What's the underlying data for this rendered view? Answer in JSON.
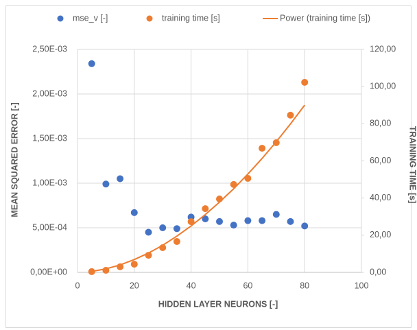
{
  "chart_data": {
    "type": "scatter",
    "x": [
      5,
      10,
      15,
      20,
      25,
      30,
      35,
      40,
      45,
      50,
      55,
      60,
      65,
      70,
      75,
      80
    ],
    "series": [
      {
        "name": "mse_v [-]",
        "color": "#4472c4",
        "mark": "dot",
        "values": [
          0.00234,
          0.00099,
          0.00105,
          0.00067,
          0.00045,
          0.0005,
          0.00049,
          0.00062,
          0.0006,
          0.00057,
          0.00053,
          0.00058,
          0.00058,
          0.00065,
          0.00057,
          0.00052
        ]
      },
      {
        "name": "training time [s]",
        "color": "#ed7d31",
        "mark": "dot",
        "axis": "y2",
        "values": [
          0.4,
          1.1,
          3,
          4.4,
          9.2,
          13.3,
          16.6,
          27.3,
          34.3,
          39.5,
          47.3,
          50.6,
          66.8,
          69.8,
          84.6,
          102.3
        ]
      },
      {
        "name": "Power (training time [s])",
        "color": "#ed7d31",
        "mark": "line",
        "axis": "y2",
        "values": [
          0.5,
          1.9,
          4,
          6.9,
          10.4,
          14.6,
          19.5,
          25,
          31.1,
          37.8,
          45,
          52.9,
          61.3,
          70.3,
          79.9,
          90
        ]
      }
    ],
    "xlabel": "HIDDEN LAYER NEURONS [-]",
    "ylabel": "MEAN SQUARED ERROR [-]",
    "y2label": "TRAINING TIME [s]",
    "xlim": [
      0,
      100
    ],
    "xticks": [
      0,
      20,
      40,
      60,
      80,
      100
    ],
    "ylim": [
      0,
      0.0025
    ],
    "yticks": [
      {
        "value": 0,
        "label": "0,00E+00"
      },
      {
        "value": 0.0005,
        "label": "5,00E-04"
      },
      {
        "value": 0.001,
        "label": "1,00E-03"
      },
      {
        "value": 0.0015,
        "label": "1,50E-03"
      },
      {
        "value": 0.002,
        "label": "2,00E-03"
      },
      {
        "value": 0.0025,
        "label": "2,50E-03"
      }
    ],
    "y2lim": [
      0,
      120
    ],
    "y2ticks": [
      {
        "value": 0,
        "label": "0,00"
      },
      {
        "value": 20,
        "label": "20,00"
      },
      {
        "value": 40,
        "label": "40,00"
      },
      {
        "value": 60,
        "label": "60,00"
      },
      {
        "value": 80,
        "label": "80,00"
      },
      {
        "value": 100,
        "label": "100,00"
      },
      {
        "value": 120,
        "label": "120,00"
      }
    ],
    "grid": true,
    "legend": "top"
  }
}
